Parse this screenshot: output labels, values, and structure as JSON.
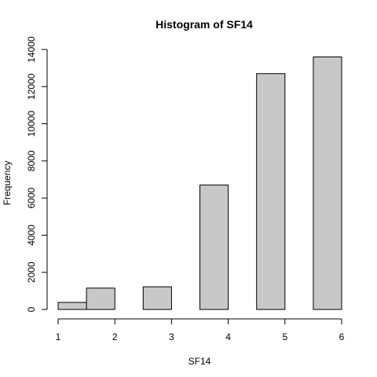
{
  "chart_data": {
    "type": "bar",
    "title": "Histogram of SF14",
    "xlabel": "SF14",
    "ylabel": "Frequency",
    "bins": [
      {
        "x0": 1.0,
        "x1": 1.5,
        "count": 380
      },
      {
        "x0": 1.5,
        "x1": 2.0,
        "count": 1150
      },
      {
        "x0": 2.0,
        "x1": 2.5,
        "count": 0
      },
      {
        "x0": 2.5,
        "x1": 3.0,
        "count": 1220
      },
      {
        "x0": 3.0,
        "x1": 3.5,
        "count": 0
      },
      {
        "x0": 3.5,
        "x1": 4.0,
        "count": 6700
      },
      {
        "x0": 4.0,
        "x1": 4.5,
        "count": 0
      },
      {
        "x0": 4.5,
        "x1": 5.0,
        "count": 12700
      },
      {
        "x0": 5.0,
        "x1": 5.5,
        "count": 0
      },
      {
        "x0": 5.5,
        "x1": 6.0,
        "count": 13600
      }
    ],
    "xlim": [
      1,
      6
    ],
    "ylim": [
      0,
      14000
    ],
    "x_ticks": [
      "1",
      "2",
      "3",
      "4",
      "5",
      "6"
    ],
    "y_ticks": [
      "0",
      "2000",
      "4000",
      "6000",
      "8000",
      "10000",
      "12000",
      "14000"
    ],
    "bar_color": "#c8c8c8",
    "grid": false,
    "legend": "none"
  }
}
